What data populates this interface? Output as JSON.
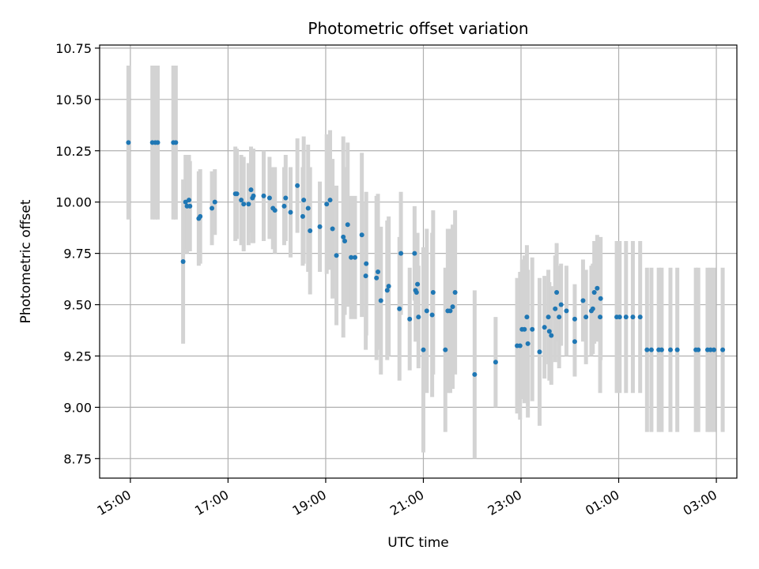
{
  "chart_data": {
    "type": "scatter",
    "title": "Photometric offset variation",
    "xlabel": "UTC time",
    "ylabel": "Photometric offset",
    "x_unit": "hours since 15:00 UTC",
    "xlim": [
      -0.63,
      12.42
    ],
    "ylim": [
      8.655,
      10.765
    ],
    "grid": true,
    "legend": false,
    "colors": {
      "point": "#1f77b4",
      "errorbar": "#d3d3d3",
      "grid": "#b0b0b0",
      "axis": "#000000"
    },
    "x_ticks": [
      {
        "value": 0,
        "label": "15:00"
      },
      {
        "value": 2,
        "label": "17:00"
      },
      {
        "value": 4,
        "label": "19:00"
      },
      {
        "value": 6,
        "label": "21:00"
      },
      {
        "value": 8,
        "label": "23:00"
      },
      {
        "value": 10,
        "label": "01:00"
      },
      {
        "value": 12,
        "label": "03:00"
      }
    ],
    "y_ticks": [
      {
        "value": 8.75,
        "label": "8.75"
      },
      {
        "value": 9.0,
        "label": "9.00"
      },
      {
        "value": 9.25,
        "label": "9.25"
      },
      {
        "value": 9.5,
        "label": "9.50"
      },
      {
        "value": 9.75,
        "label": "9.75"
      },
      {
        "value": 10.0,
        "label": "10.00"
      },
      {
        "value": 10.25,
        "label": "10.25"
      },
      {
        "value": 10.5,
        "label": "10.50"
      },
      {
        "value": 10.75,
        "label": "10.75"
      }
    ],
    "points": [
      [
        -0.04,
        10.29,
        0.375
      ],
      [
        0.45,
        10.29,
        0.375
      ],
      [
        0.51,
        10.29,
        0.375
      ],
      [
        0.56,
        10.29,
        0.375
      ],
      [
        0.88,
        10.29,
        0.375
      ],
      [
        0.93,
        10.29,
        0.375
      ],
      [
        1.08,
        9.71,
        0.4
      ],
      [
        1.13,
        10.0,
        0.23
      ],
      [
        1.16,
        9.98,
        0.23
      ],
      [
        1.2,
        10.01,
        0.22
      ],
      [
        1.22,
        9.98,
        0.22
      ],
      [
        1.4,
        9.92,
        0.23
      ],
      [
        1.43,
        9.93,
        0.23
      ],
      [
        1.67,
        9.97,
        0.18
      ],
      [
        1.73,
        10.0,
        0.16
      ],
      [
        2.15,
        10.04,
        0.23
      ],
      [
        2.18,
        10.04,
        0.22
      ],
      [
        2.27,
        10.01,
        0.22
      ],
      [
        2.32,
        9.99,
        0.23
      ],
      [
        2.42,
        9.99,
        0.2
      ],
      [
        2.47,
        10.06,
        0.21
      ],
      [
        2.5,
        10.02,
        0.22
      ],
      [
        2.52,
        10.03,
        0.23
      ],
      [
        2.73,
        10.03,
        0.22
      ],
      [
        2.85,
        10.02,
        0.2
      ],
      [
        2.92,
        9.97,
        0.2
      ],
      [
        2.96,
        9.96,
        0.21
      ],
      [
        3.15,
        9.98,
        0.19
      ],
      [
        3.18,
        10.02,
        0.21
      ],
      [
        3.28,
        9.95,
        0.22
      ],
      [
        3.42,
        10.08,
        0.23
      ],
      [
        3.53,
        9.93,
        0.24
      ],
      [
        3.55,
        10.01,
        0.31
      ],
      [
        3.64,
        9.97,
        0.31
      ],
      [
        3.68,
        9.86,
        0.31
      ],
      [
        3.88,
        9.88,
        0.22
      ],
      [
        4.02,
        9.99,
        0.34
      ],
      [
        4.09,
        10.01,
        0.34
      ],
      [
        4.14,
        9.87,
        0.34
      ],
      [
        4.22,
        9.74,
        0.34
      ],
      [
        4.36,
        9.83,
        0.49
      ],
      [
        4.39,
        9.81,
        0.36
      ],
      [
        4.45,
        9.89,
        0.4
      ],
      [
        4.52,
        9.73,
        0.3
      ],
      [
        4.6,
        9.73,
        0.3
      ],
      [
        4.74,
        9.84,
        0.4
      ],
      [
        4.82,
        9.64,
        0.36
      ],
      [
        4.83,
        9.7,
        0.35
      ],
      [
        5.04,
        9.63,
        0.4
      ],
      [
        5.07,
        9.66,
        0.38
      ],
      [
        5.13,
        9.52,
        0.36
      ],
      [
        5.26,
        9.57,
        0.34
      ],
      [
        5.29,
        9.59,
        0.34
      ],
      [
        5.51,
        9.48,
        0.35
      ],
      [
        5.54,
        9.75,
        0.3
      ],
      [
        5.72,
        9.43,
        0.25
      ],
      [
        5.82,
        9.75,
        0.23
      ],
      [
        5.84,
        9.57,
        0.25
      ],
      [
        5.86,
        9.56,
        0.24
      ],
      [
        5.88,
        9.6,
        0.25
      ],
      [
        5.9,
        9.44,
        0.25
      ],
      [
        6.0,
        9.28,
        0.5
      ],
      [
        6.07,
        9.47,
        0.4
      ],
      [
        6.18,
        9.45,
        0.4
      ],
      [
        6.2,
        9.56,
        0.4
      ],
      [
        6.45,
        9.28,
        0.4
      ],
      [
        6.5,
        9.47,
        0.4
      ],
      [
        6.55,
        9.47,
        0.4
      ],
      [
        6.6,
        9.49,
        0.4
      ],
      [
        6.65,
        9.56,
        0.4
      ],
      [
        7.05,
        9.16,
        0.41
      ],
      [
        7.48,
        9.22,
        0.22
      ],
      [
        7.92,
        9.3,
        0.33
      ],
      [
        7.98,
        9.3,
        0.36
      ],
      [
        8.02,
        9.38,
        0.34
      ],
      [
        8.07,
        9.38,
        0.36
      ],
      [
        8.12,
        9.44,
        0.35
      ],
      [
        8.14,
        9.31,
        0.36
      ],
      [
        8.23,
        9.38,
        0.35
      ],
      [
        8.38,
        9.27,
        0.36
      ],
      [
        8.48,
        9.39,
        0.25
      ],
      [
        8.56,
        9.44,
        0.23
      ],
      [
        8.58,
        9.37,
        0.24
      ],
      [
        8.62,
        9.35,
        0.24
      ],
      [
        8.7,
        9.48,
        0.26
      ],
      [
        8.73,
        9.56,
        0.24
      ],
      [
        8.78,
        9.44,
        0.25
      ],
      [
        8.82,
        9.5,
        0.2
      ],
      [
        8.93,
        9.47,
        0.22
      ],
      [
        9.1,
        9.43,
        0.17
      ],
      [
        9.1,
        9.32,
        0.17
      ],
      [
        9.27,
        9.52,
        0.2
      ],
      [
        9.33,
        9.44,
        0.23
      ],
      [
        9.44,
        9.47,
        0.22
      ],
      [
        9.47,
        9.48,
        0.22
      ],
      [
        9.5,
        9.56,
        0.25
      ],
      [
        9.56,
        9.58,
        0.26
      ],
      [
        9.62,
        9.44,
        0.37
      ],
      [
        9.63,
        9.53,
        0.3
      ],
      [
        9.96,
        9.44,
        0.37
      ],
      [
        10.02,
        9.44,
        0.37
      ],
      [
        10.15,
        9.44,
        0.37
      ],
      [
        10.29,
        9.44,
        0.37
      ],
      [
        10.44,
        9.44,
        0.37
      ],
      [
        10.58,
        9.28,
        0.4
      ],
      [
        10.67,
        9.28,
        0.4
      ],
      [
        10.82,
        9.28,
        0.4
      ],
      [
        10.88,
        9.28,
        0.4
      ],
      [
        11.06,
        9.28,
        0.4
      ],
      [
        11.2,
        9.28,
        0.4
      ],
      [
        11.58,
        9.28,
        0.4
      ],
      [
        11.63,
        9.28,
        0.4
      ],
      [
        11.82,
        9.28,
        0.4
      ],
      [
        11.88,
        9.28,
        0.4
      ],
      [
        11.95,
        9.28,
        0.4
      ],
      [
        12.13,
        9.28,
        0.4
      ]
    ]
  }
}
